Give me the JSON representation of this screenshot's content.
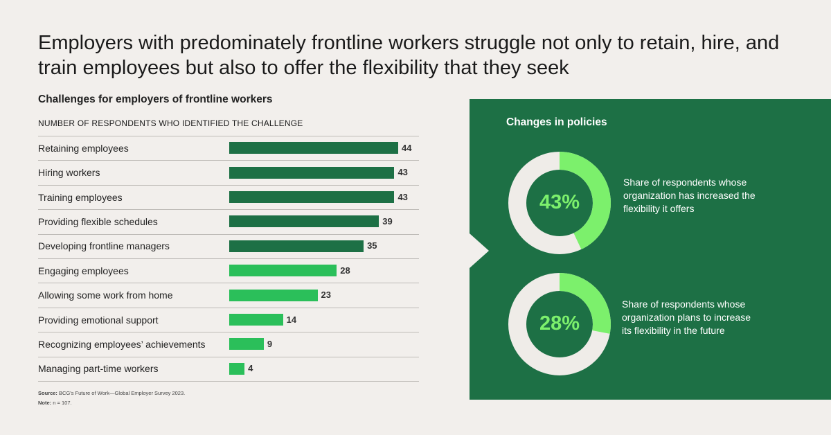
{
  "title": "Employers with predominately frontline workers struggle not only to retain, hire, and train employees but also to offer the flexibility that they seek",
  "chart_data": [
    {
      "type": "bar",
      "orientation": "horizontal",
      "title": "Challenges for employers of frontline workers",
      "xlabel": "NUMBER OF RESPONDENTS WHO IDENTIFIED THE CHALLENGE",
      "categories": [
        "Retaining employees",
        "Hiring workers",
        "Training employees",
        "Providing flexible schedules",
        "Developing frontline managers",
        "Engaging employees",
        "Allowing some work from home",
        "Providing emotional support",
        "Recognizing employees’ achievements",
        "Managing part-time workers"
      ],
      "values": [
        44,
        43,
        43,
        39,
        35,
        28,
        23,
        14,
        9,
        4
      ],
      "highlight_top_n": 5,
      "colors": {
        "top": "#1d7045",
        "rest": "#2bbf5a"
      },
      "xlim": [
        0,
        44
      ]
    },
    {
      "type": "pie",
      "subtype": "donut",
      "title": "Changes in policies",
      "items": [
        {
          "value": 43,
          "label": "43%",
          "description": "Share of respondents whose organization has increased the flexibility it offers"
        },
        {
          "value": 28,
          "label": "28%",
          "description": "Share of respondents whose organization plans to increase its flexibility in the future"
        }
      ],
      "colors": {
        "fill": "#7cf06c",
        "track": "#efece8"
      }
    }
  ],
  "source": {
    "source_label": "Source:",
    "source_text": "BCG's Future of Work—Global Employer Survey 2023.",
    "note_label": "Note:",
    "note_text": "n = 107."
  },
  "colors": {
    "background": "#f2efec",
    "panel": "#1d7045"
  }
}
